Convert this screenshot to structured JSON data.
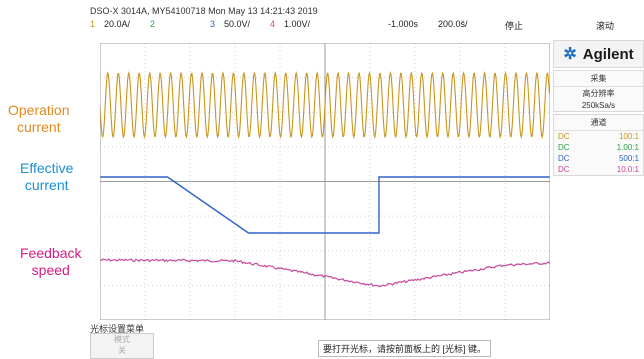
{
  "header": {
    "title": "DSO-X 3014A, MY54100718 Mon May 13 14:21:43 2019",
    "ch1": "1",
    "ch1_scale": "20.0A/",
    "ch2": "2",
    "ch3": "3",
    "ch3_scale": "50.0V/",
    "ch4": "4",
    "ch4_scale": "1.00V/",
    "delay": "-1.000s",
    "timebase": "200.0š/",
    "run_state": "停止",
    "mode": "滚动"
  },
  "labels": {
    "operation": "Operation\ncurrent",
    "effective": "Effective\ncurrent",
    "feedback": "Feedback\nspeed"
  },
  "side": {
    "brand": "Agilent",
    "acq_title": "采集",
    "acq_mode": "高分辨率",
    "acq_rate": "250kSa/s",
    "ch_title": "通道",
    "channels": [
      {
        "coupling": "DC",
        "scale": "100:1"
      },
      {
        "coupling": "DC",
        "scale": "1.00:1"
      },
      {
        "coupling": "DC",
        "scale": "500:1"
      },
      {
        "coupling": "DC",
        "scale": "10.0:1"
      }
    ]
  },
  "footer": {
    "menu": "光标设置菜单",
    "button_line1": "模式",
    "button_line2": "关",
    "message": "要打开光标，请按前面板上的 [光标] 键。"
  },
  "colors": {
    "ch1": "#c9951e",
    "ch2": "#2aa043",
    "ch3": "#2f64c8",
    "ch4": "#c54a9a",
    "operation_label": "#e08a1a",
    "effective_label": "#1a8fd6",
    "feedback_label": "#d81b85"
  },
  "chart_data": {
    "type": "line",
    "series": [
      {
        "name": "Operation current",
        "kind": "sine",
        "cycles": 43
      },
      {
        "name": "Effective current",
        "x": [
          0,
          0.15,
          0.33,
          0.62,
          0.62,
          1.0
        ],
        "y": [
          1,
          1,
          0,
          0,
          1,
          1
        ]
      },
      {
        "name": "Feedback speed",
        "x": [
          0,
          0.3,
          0.62,
          0.9,
          1.0
        ],
        "y": [
          0.62,
          0.6,
          0.0,
          0.5,
          0.55
        ]
      }
    ]
  }
}
